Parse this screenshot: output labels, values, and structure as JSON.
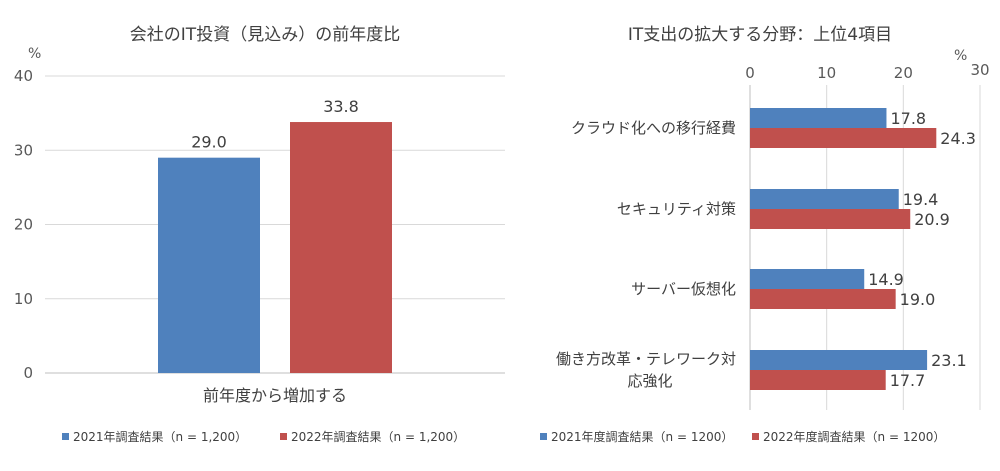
{
  "chart_data": [
    {
      "type": "bar",
      "title": "会社のIT投資（見込み）の前年度比",
      "unit": "%",
      "ylim": [
        0,
        40
      ],
      "yticks": [
        0,
        10,
        20,
        30,
        40
      ],
      "categories": [
        "前年度から増加する"
      ],
      "series": [
        {
          "name": "2021年調査結果（n = 1,200）",
          "color": "#4f81bd",
          "values": [
            29.0
          ]
        },
        {
          "name": "2022年調査結果（n = 1,200）",
          "color": "#c0504d",
          "values": [
            33.8
          ]
        }
      ],
      "data_labels": [
        "29.0",
        "33.8"
      ],
      "grid": true,
      "legend": "bottom"
    },
    {
      "type": "bar",
      "orientation": "horizontal",
      "title": "IT支出の拡大する分野：上位4項目",
      "unit": "%",
      "xlim": [
        0,
        30
      ],
      "xticks": [
        0,
        10,
        20,
        30
      ],
      "categories": [
        [
          "クラウド化への移行経費"
        ],
        [
          "セキュリティ対策"
        ],
        [
          "サーバー仮想化"
        ],
        [
          "働き方改革・テレワーク対",
          "応強化"
        ]
      ],
      "series": [
        {
          "name": "2021年度調査結果（n = 1200）",
          "color": "#4f81bd",
          "values": [
            17.8,
            19.4,
            14.9,
            23.1
          ]
        },
        {
          "name": "2022年度調査結果（n = 1200）",
          "color": "#c0504d",
          "values": [
            24.3,
            20.9,
            19.0,
            17.7
          ]
        }
      ],
      "grid": true,
      "legend": "bottom"
    }
  ]
}
